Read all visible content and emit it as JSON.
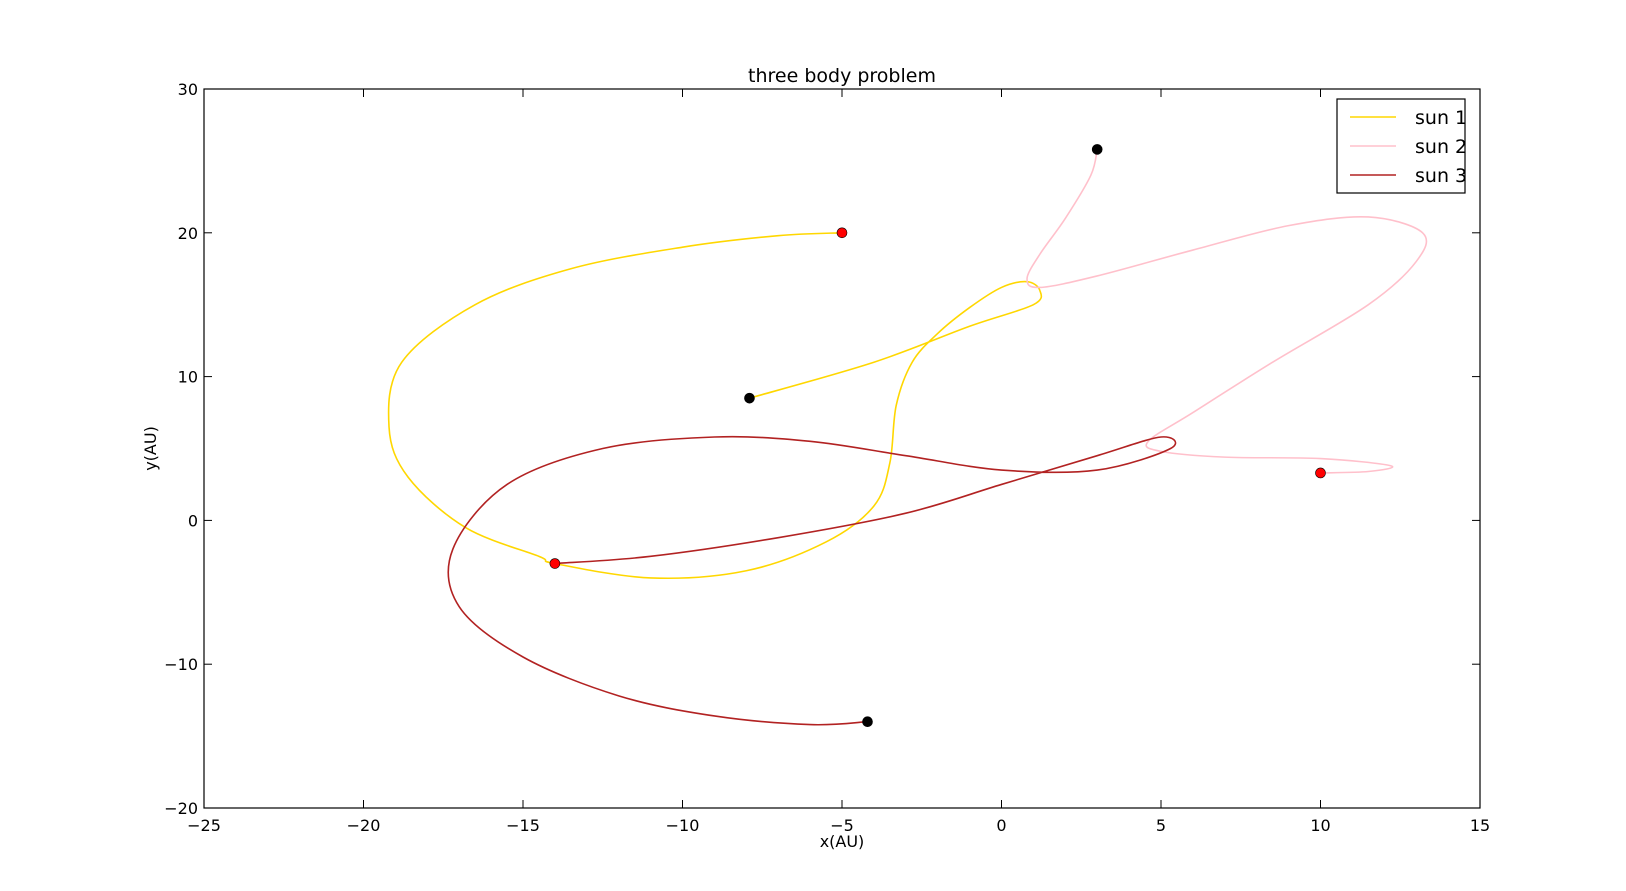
{
  "chart_data": {
    "type": "line",
    "title": "three body problem",
    "xlabel": "x(AU)",
    "ylabel": "y(AU)",
    "xlim": [
      -25,
      15
    ],
    "ylim": [
      -20,
      30
    ],
    "xticks": [
      -25,
      -20,
      -15,
      -10,
      -5,
      0,
      5,
      10,
      15
    ],
    "yticks": [
      -20,
      -10,
      0,
      10,
      20,
      30
    ],
    "xtick_labels": [
      "−25",
      "−20",
      "−15",
      "−10",
      "−5",
      "0",
      "5",
      "10",
      "15"
    ],
    "ytick_labels": [
      "−20",
      "−10",
      "0",
      "10",
      "20",
      "30"
    ],
    "grid": false,
    "legend_position": "top-right",
    "series": [
      {
        "name": "sun 1",
        "color": "#ffd700",
        "x": [
          -5.0,
          -7.0,
          -10.0,
          -13.5,
          -16.5,
          -18.8,
          -19.2,
          -18.6,
          -16.8,
          -14.5,
          -14.0,
          -11.0,
          -8.0,
          -5.5,
          -4.0,
          -3.5,
          -3.3,
          -2.8,
          -2.0,
          -1.0,
          0.0,
          0.8,
          1.2,
          1.0,
          -1.0,
          -4.0,
          -7.9
        ],
        "y": [
          20.0,
          19.8,
          19.0,
          17.5,
          15.0,
          11.0,
          6.5,
          3.0,
          -0.5,
          -2.5,
          -3.0,
          -4.0,
          -3.5,
          -1.5,
          1.0,
          4.0,
          8.0,
          11.0,
          13.0,
          14.8,
          16.2,
          16.6,
          16.0,
          15.0,
          13.5,
          11.0,
          8.5
        ]
      },
      {
        "name": "sun 2",
        "color": "#ffc0cb",
        "x": [
          3.0,
          2.8,
          2.0,
          1.2,
          0.8,
          1.2,
          3.0,
          6.0,
          9.0,
          11.5,
          13.2,
          13.0,
          11.5,
          8.5,
          6.0,
          4.6,
          5.0,
          7.0,
          10.0,
          12.2,
          11.5,
          10.0
        ],
        "y": [
          25.8,
          24.0,
          21.0,
          18.5,
          16.8,
          16.2,
          17.0,
          18.8,
          20.5,
          21.1,
          20.0,
          18.0,
          15.0,
          11.0,
          7.5,
          5.5,
          4.8,
          4.4,
          4.3,
          3.8,
          3.4,
          3.3
        ],
        "mark_values": false
      },
      {
        "name": "sun 3",
        "color": "#b22222",
        "x": [
          -14.0,
          -11.0,
          -7.0,
          -3.0,
          0.0,
          3.0,
          5.0,
          5.3,
          3.0,
          0.0,
          -3.0,
          -6.0,
          -9.0,
          -12.5,
          -15.5,
          -17.2,
          -17.0,
          -15.0,
          -12.0,
          -9.0,
          -6.0,
          -4.2
        ],
        "y": [
          -3.0,
          -2.5,
          -1.2,
          0.5,
          2.5,
          4.5,
          5.8,
          5.0,
          3.5,
          3.5,
          4.5,
          5.5,
          5.8,
          5.0,
          2.5,
          -2.0,
          -6.0,
          -9.5,
          -12.2,
          -13.6,
          -14.2,
          -14.0
        ]
      }
    ],
    "markers": [
      {
        "x": -5.0,
        "y": 20.0,
        "color": "#ff0000"
      },
      {
        "x": 10.0,
        "y": 3.3,
        "color": "#ff0000"
      },
      {
        "x": -14.0,
        "y": -3.0,
        "color": "#ff0000"
      },
      {
        "x": 3.0,
        "y": 25.8,
        "color": "#000000"
      },
      {
        "x": -7.9,
        "y": 8.5,
        "color": "#000000"
      },
      {
        "x": -4.2,
        "y": -14.0,
        "color": "#000000"
      }
    ]
  }
}
